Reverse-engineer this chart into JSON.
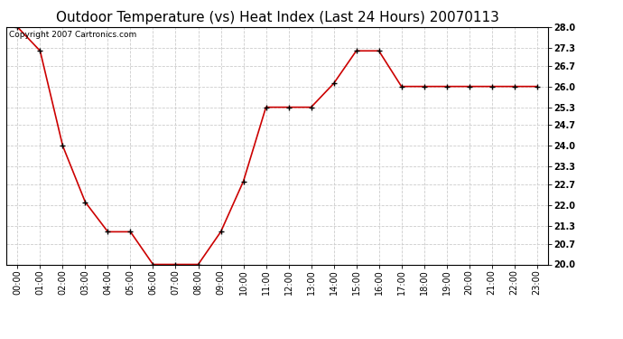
{
  "title": "Outdoor Temperature (vs) Heat Index (Last 24 Hours) 20070113",
  "copyright_text": "Copyright 2007 Cartronics.com",
  "x_labels": [
    "00:00",
    "01:00",
    "02:00",
    "03:00",
    "04:00",
    "05:00",
    "06:00",
    "07:00",
    "08:00",
    "09:00",
    "10:00",
    "11:00",
    "12:00",
    "13:00",
    "14:00",
    "15:00",
    "16:00",
    "17:00",
    "18:00",
    "19:00",
    "20:00",
    "21:00",
    "22:00",
    "23:00"
  ],
  "y_values": [
    28.0,
    27.2,
    24.0,
    22.1,
    21.1,
    21.1,
    20.0,
    20.0,
    20.0,
    21.1,
    22.8,
    25.3,
    25.3,
    25.3,
    26.1,
    27.2,
    27.2,
    26.0,
    26.0,
    26.0,
    26.0,
    26.0,
    26.0,
    26.0
  ],
  "y_min": 20.0,
  "y_max": 28.0,
  "y_ticks": [
    20.0,
    20.7,
    21.3,
    22.0,
    22.7,
    23.3,
    24.0,
    24.7,
    25.3,
    26.0,
    26.7,
    27.3,
    28.0
  ],
  "line_color": "#CC0000",
  "marker": "+",
  "marker_size": 5,
  "marker_color": "#000000",
  "bg_color": "#FFFFFF",
  "plot_bg_color": "#FFFFFF",
  "grid_color": "#CCCCCC",
  "title_fontsize": 11,
  "tick_fontsize": 7,
  "copyright_fontsize": 6.5
}
